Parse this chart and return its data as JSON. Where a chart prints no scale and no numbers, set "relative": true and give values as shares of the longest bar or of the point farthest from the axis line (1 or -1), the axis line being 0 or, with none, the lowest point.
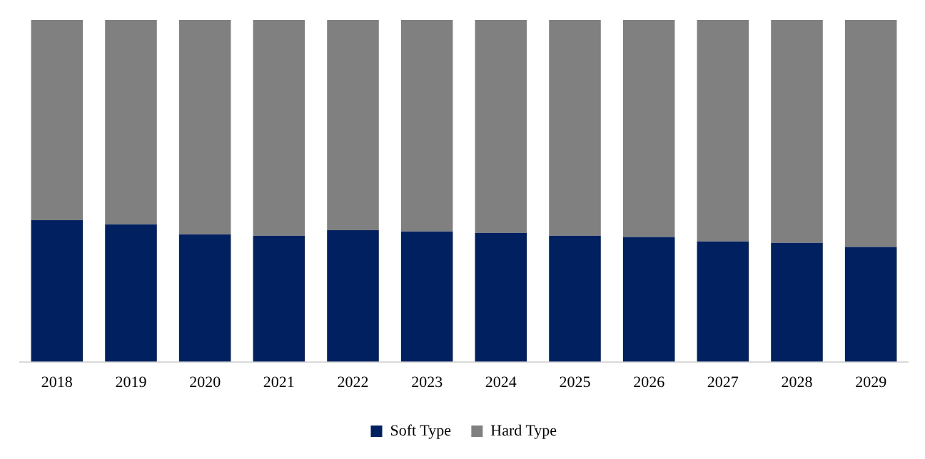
{
  "chart_data": {
    "type": "bar",
    "stacked": true,
    "relative": true,
    "legend": "bottom",
    "categories": [
      "2018",
      "2019",
      "2020",
      "2021",
      "2022",
      "2023",
      "2024",
      "2025",
      "2026",
      "2027",
      "2028",
      "2029"
    ],
    "series": [
      {
        "name": "Soft Type",
        "color": "#002060",
        "values": [
          0.414,
          0.402,
          0.373,
          0.369,
          0.385,
          0.381,
          0.377,
          0.369,
          0.365,
          0.352,
          0.348,
          0.336
        ]
      },
      {
        "name": "Hard Type",
        "color": "#808080",
        "values": [
          0.586,
          0.598,
          0.627,
          0.631,
          0.615,
          0.619,
          0.623,
          0.631,
          0.635,
          0.648,
          0.652,
          0.664
        ]
      }
    ]
  }
}
